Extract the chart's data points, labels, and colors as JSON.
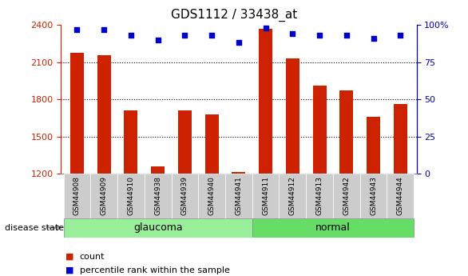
{
  "title": "GDS1112 / 33438_at",
  "categories": [
    "GSM44908",
    "GSM44909",
    "GSM44910",
    "GSM44938",
    "GSM44939",
    "GSM44940",
    "GSM44941",
    "GSM44911",
    "GSM44912",
    "GSM44913",
    "GSM44942",
    "GSM44943",
    "GSM44944"
  ],
  "counts": [
    2175,
    2155,
    1710,
    1260,
    1710,
    1680,
    1215,
    2370,
    2130,
    1910,
    1870,
    1660,
    1760
  ],
  "percentiles": [
    97,
    97,
    93,
    90,
    93,
    93,
    88,
    98,
    94,
    93,
    93,
    91,
    93
  ],
  "groups": [
    "glaucoma",
    "glaucoma",
    "glaucoma",
    "glaucoma",
    "glaucoma",
    "glaucoma",
    "glaucoma",
    "normal",
    "normal",
    "normal",
    "normal",
    "normal",
    "normal"
  ],
  "bar_color": "#cc2200",
  "dot_color": "#0000cc",
  "ylim_left": [
    1200,
    2400
  ],
  "ylim_right": [
    0,
    100
  ],
  "yticks_left": [
    1200,
    1500,
    1800,
    2100,
    2400
  ],
  "yticks_right": [
    0,
    25,
    50,
    75,
    100
  ],
  "grid_color": "#000000",
  "background_color": "#ffffff",
  "glaucoma_color": "#99ee99",
  "normal_color": "#66dd66",
  "label_box_color": "#cccccc",
  "legend_count_color": "#cc2200",
  "legend_percentile_color": "#0000cc"
}
